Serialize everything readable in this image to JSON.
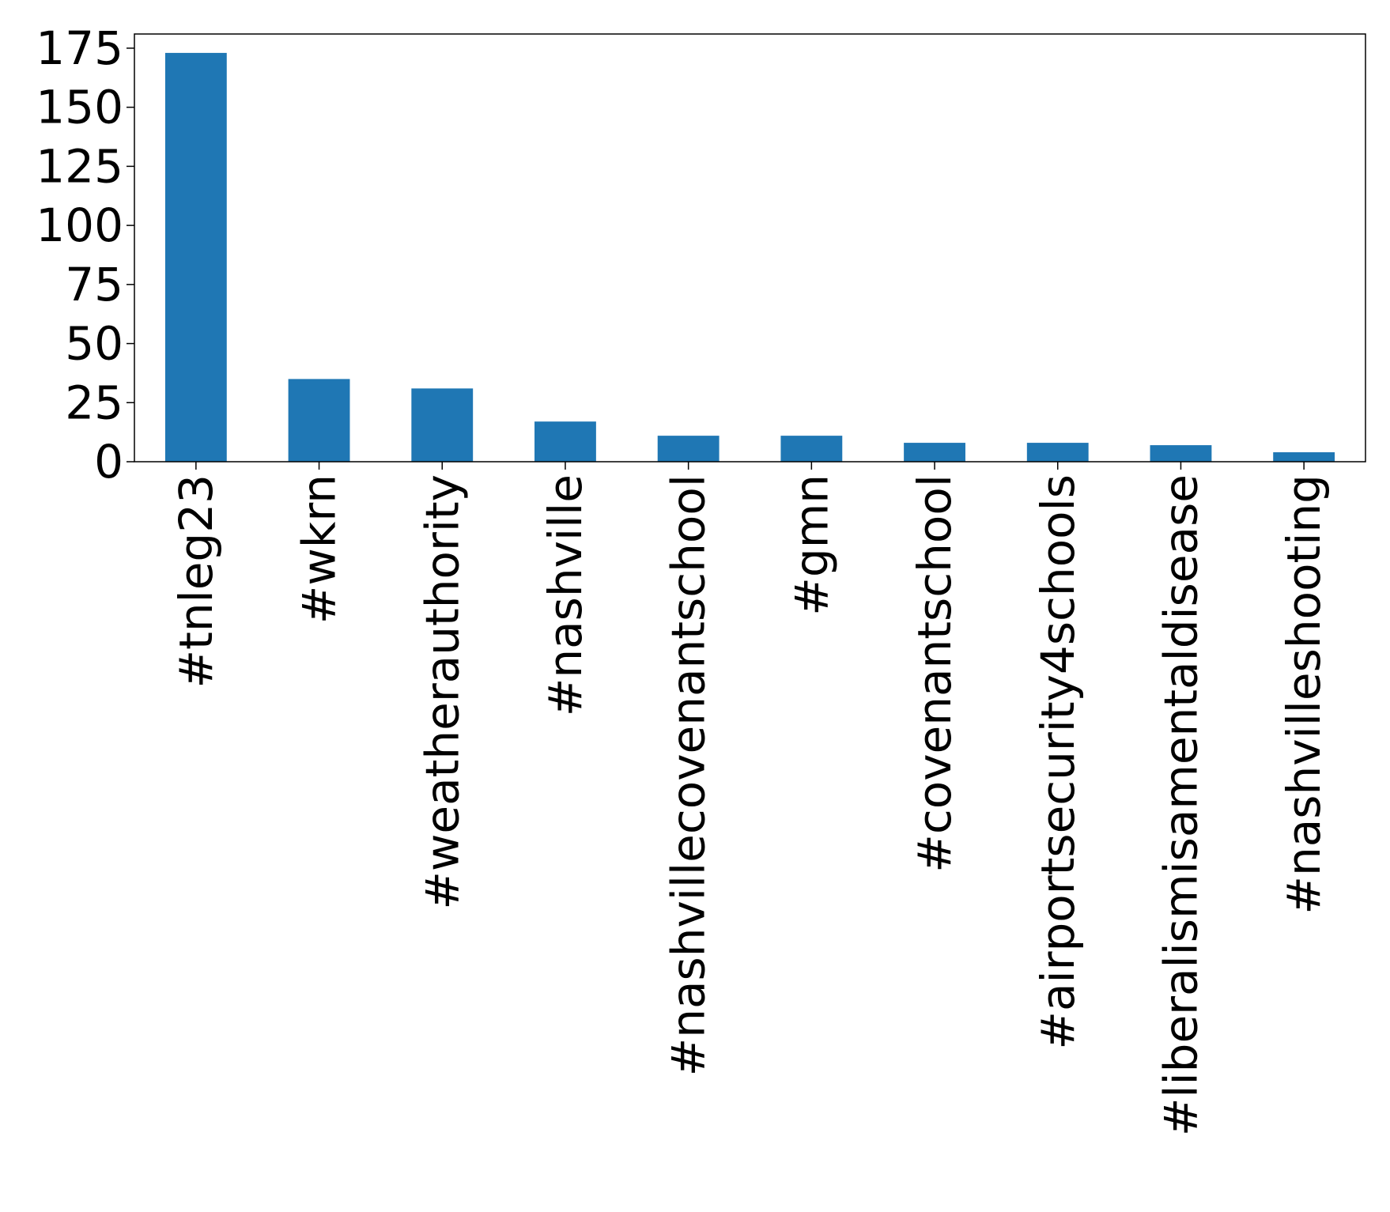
{
  "chart_data": {
    "type": "bar",
    "categories": [
      "#tnleg23",
      "#wkrn",
      "#weatherauthority",
      "#nashville",
      "#nashvillecovenantschool",
      "#gmn",
      "#covenantschool",
      "#airportsecurity4schools",
      "#liberalismisamentaldisease",
      "#nashvilleshooting"
    ],
    "values": [
      173,
      35,
      31,
      17,
      11,
      11,
      8,
      8,
      7,
      4
    ],
    "ylim": [
      0,
      181
    ],
    "yticks": [
      0,
      25,
      50,
      75,
      100,
      125,
      150,
      175
    ],
    "ytick_labels": [
      "0",
      "25",
      "50",
      "75",
      "100",
      "125",
      "150",
      "175"
    ],
    "bar_color": "#1f77b4",
    "grid": false,
    "title": "",
    "xlabel": "",
    "ylabel": ""
  }
}
